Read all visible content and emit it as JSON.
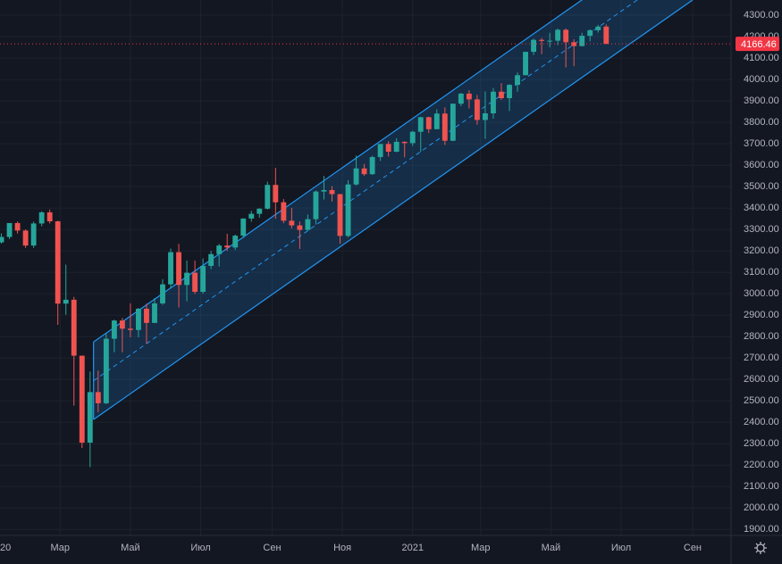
{
  "chart_data": {
    "type": "candlestick",
    "x": [
      9,
      16,
      23,
      30,
      37,
      44,
      51,
      58,
      65,
      72,
      79,
      86,
      93,
      100,
      107,
      114,
      121,
      128,
      135,
      142,
      149,
      156,
      163,
      170,
      177,
      184,
      191,
      198,
      205,
      212,
      219,
      226,
      233,
      240,
      247,
      254,
      261,
      268,
      275,
      282,
      289,
      296,
      303,
      310,
      317,
      324,
      331,
      338,
      345,
      352,
      359,
      366,
      373,
      380,
      387,
      394,
      401,
      408,
      415,
      422,
      429,
      436,
      443,
      450,
      457,
      464,
      471,
      478,
      485,
      492,
      499,
      506,
      513,
      520,
      527,
      534
    ],
    "open": [
      3240,
      3265,
      3330,
      3295,
      3225,
      3328,
      3380,
      3338,
      2954,
      2972,
      2711,
      2305,
      2541,
      2489,
      2790,
      2875,
      2837,
      2831,
      2930,
      2864,
      2955,
      3044,
      3194,
      3041,
      3098,
      3009,
      3130,
      3185,
      3225,
      3216,
      3271,
      3351,
      3373,
      3397,
      3508,
      3427,
      3341,
      3319,
      3298,
      3348,
      3477,
      3484,
      3465,
      3270,
      3510,
      3585,
      3558,
      3638,
      3699,
      3663,
      3709,
      3703,
      3756,
      3824,
      3768,
      3841,
      3714,
      3887,
      3934,
      3907,
      3811,
      3842,
      3943,
      3913,
      3975,
      4020,
      4129,
      4185,
      4180,
      4181,
      4232,
      4174,
      4156,
      4204,
      4230,
      4247
    ],
    "high": [
      3282,
      3330,
      3337,
      3300,
      3337,
      3385,
      3393,
      3341,
      3136,
      2985,
      2711,
      2637,
      2641,
      2818,
      2879,
      2887,
      2955,
      2934,
      2954,
      2980,
      3068,
      3211,
      3233,
      3155,
      3155,
      3165,
      3200,
      3233,
      3280,
      3276,
      3352,
      3387,
      3399,
      3523,
      3588,
      3442,
      3401,
      3337,
      3370,
      3482,
      3550,
      3502,
      3466,
      3530,
      3645,
      3606,
      3644,
      3699,
      3712,
      3726,
      3712,
      3760,
      3826,
      3826,
      3861,
      3870,
      3888,
      3937,
      3950,
      3928,
      3944,
      3960,
      3983,
      3978,
      4033,
      4130,
      4191,
      4194,
      4218,
      4238,
      4238,
      4188,
      4218,
      4234,
      4255,
      4257
    ],
    "low": [
      3234,
      3255,
      3281,
      3214,
      3214,
      3315,
      3328,
      2855,
      2902,
      2478,
      2280,
      2191,
      2447,
      2485,
      2727,
      2727,
      2797,
      2797,
      2767,
      2864,
      2948,
      3025,
      2936,
      2965,
      2999,
      3000,
      3115,
      3127,
      3200,
      3204,
      3260,
      3336,
      3355,
      3393,
      3350,
      3329,
      3305,
      3209,
      3294,
      3323,
      3440,
      3430,
      3233,
      3263,
      3505,
      3550,
      3555,
      3620,
      3640,
      3660,
      3637,
      3690,
      3662,
      3750,
      3767,
      3694,
      3712,
      3875,
      3865,
      3789,
      3723,
      3817,
      3905,
      3853,
      3943,
      4019,
      4114,
      4118,
      4150,
      4160,
      4056,
      4062,
      4154,
      4178,
      4219,
      4165
    ],
    "close": [
      3265,
      3330,
      3295,
      3225,
      3328,
      3380,
      3338,
      2954,
      2972,
      2711,
      2305,
      2541,
      2489,
      2790,
      2875,
      2837,
      2831,
      2930,
      2864,
      2955,
      3044,
      3194,
      3041,
      3098,
      3009,
      3130,
      3185,
      3225,
      3216,
      3271,
      3351,
      3373,
      3397,
      3508,
      3427,
      3341,
      3319,
      3298,
      3348,
      3477,
      3484,
      3465,
      3270,
      3510,
      3585,
      3558,
      3638,
      3699,
      3663,
      3709,
      3703,
      3756,
      3824,
      3768,
      3841,
      3714,
      3887,
      3934,
      3907,
      3811,
      3842,
      3943,
      3913,
      3975,
      4020,
      4129,
      4185,
      4180,
      4181,
      4232,
      4174,
      4156,
      4204,
      4230,
      4247,
      4166.46
    ],
    "up_color": "#26a69a",
    "down_color": "#ef5350",
    "xlim": [
      7.8,
      642.4
    ],
    "ylim": [
      1872,
      4371
    ],
    "xticks": [
      {
        "value": 0,
        "label": "20"
      },
      {
        "value": 60,
        "label": "Мар"
      },
      {
        "value": 121,
        "label": "Май"
      },
      {
        "value": 182,
        "label": "Июл"
      },
      {
        "value": 244,
        "label": "Сен"
      },
      {
        "value": 305,
        "label": "Ноя"
      },
      {
        "value": 366,
        "label": "2021"
      },
      {
        "value": 425,
        "label": "Мар"
      },
      {
        "value": 486,
        "label": "Май"
      },
      {
        "value": 547,
        "label": "Июл"
      },
      {
        "value": 609,
        "label": "Сен"
      }
    ],
    "yticks": [
      {
        "value": 1900,
        "label": "1900.00"
      },
      {
        "value": 2000,
        "label": "2000.00"
      },
      {
        "value": 2100,
        "label": "2100.00"
      },
      {
        "value": 2200,
        "label": "2200.00"
      },
      {
        "value": 2300,
        "label": "2300.00"
      },
      {
        "value": 2400,
        "label": "2400.00"
      },
      {
        "value": 2500,
        "label": "2500.00"
      },
      {
        "value": 2600,
        "label": "2600.00"
      },
      {
        "value": 2700,
        "label": "2700.00"
      },
      {
        "value": 2800,
        "label": "2800.00"
      },
      {
        "value": 2900,
        "label": "2900.00"
      },
      {
        "value": 3000,
        "label": "3000.00"
      },
      {
        "value": 3100,
        "label": "3100.00"
      },
      {
        "value": 3200,
        "label": "3200.00"
      },
      {
        "value": 3300,
        "label": "3300.00"
      },
      {
        "value": 3400,
        "label": "3400.00"
      },
      {
        "value": 3500,
        "label": "3500.00"
      },
      {
        "value": 3600,
        "label": "3600.00"
      },
      {
        "value": 3700,
        "label": "3700.00"
      },
      {
        "value": 3800,
        "label": "3800.00"
      },
      {
        "value": 3900,
        "label": "3900.00"
      },
      {
        "value": 4000,
        "label": "4000.00"
      },
      {
        "value": 4100,
        "label": "4100.00"
      },
      {
        "value": 4200,
        "label": "4200.00"
      },
      {
        "value": 4300,
        "label": "4300.00"
      }
    ],
    "grid": true,
    "channel": {
      "start": [
        89,
        2413
      ],
      "end": [
        609,
        4371
      ],
      "width": 362,
      "color": "#2196f3"
    },
    "last_price_color": "#f23645"
  }
}
